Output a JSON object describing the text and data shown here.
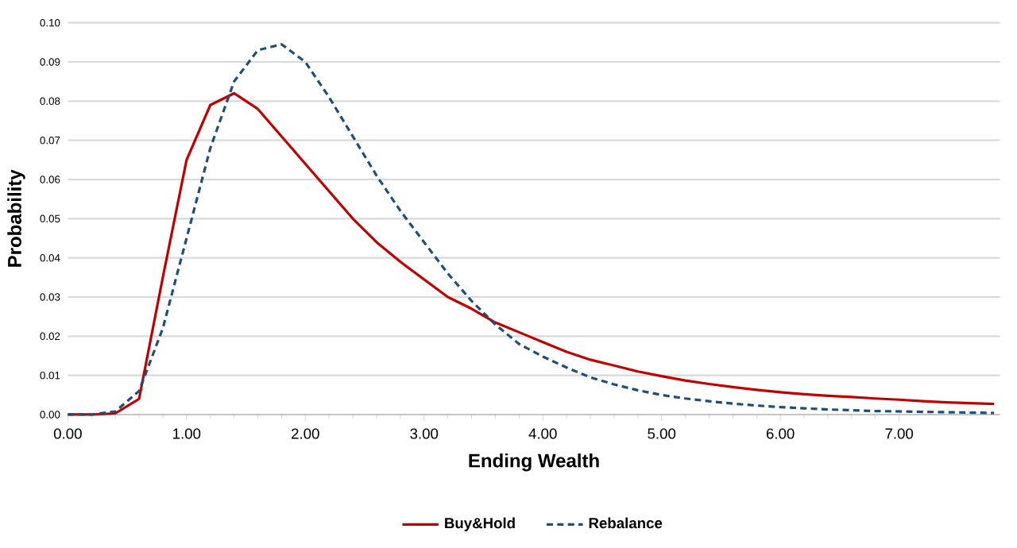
{
  "chart_data": {
    "type": "line",
    "xlabel": "Ending Wealth",
    "ylabel": "Probability",
    "x": [
      0,
      0.2,
      0.4,
      0.6,
      0.8,
      1.0,
      1.2,
      1.4,
      1.6,
      1.8,
      2.0,
      2.2,
      2.4,
      2.6,
      2.8,
      3.0,
      3.2,
      3.4,
      3.6,
      3.8,
      4.0,
      4.2,
      4.4,
      4.6,
      4.8,
      5.0,
      5.2,
      5.4,
      5.6,
      5.8,
      6.0,
      6.2,
      6.4,
      6.6,
      6.8,
      7.0,
      7.2,
      7.4,
      7.6,
      7.8
    ],
    "series": [
      {
        "name": "Buy&Hold",
        "color": "#c00000",
        "line_style": "solid",
        "values": [
          0,
          0,
          0.0003,
          0.004,
          0.035,
          0.065,
          0.079,
          0.082,
          0.078,
          0.071,
          0.064,
          0.057,
          0.05,
          0.044,
          0.039,
          0.0345,
          0.03,
          0.027,
          0.0235,
          0.021,
          0.0185,
          0.016,
          0.014,
          0.0125,
          0.011,
          0.0098,
          0.0087,
          0.0078,
          0.007,
          0.0063,
          0.0057,
          0.0052,
          0.0048,
          0.0045,
          0.0041,
          0.0038,
          0.0034,
          0.0031,
          0.0029,
          0.0027
        ]
      },
      {
        "name": "Rebalance",
        "color": "#1f4e79",
        "line_style": "dashed",
        "values": [
          0,
          0,
          0.0008,
          0.006,
          0.022,
          0.045,
          0.068,
          0.085,
          0.093,
          0.0945,
          0.09,
          0.081,
          0.071,
          0.061,
          0.052,
          0.044,
          0.036,
          0.029,
          0.023,
          0.018,
          0.0148,
          0.012,
          0.0095,
          0.0077,
          0.0062,
          0.005,
          0.0041,
          0.0034,
          0.0028,
          0.0023,
          0.0019,
          0.0016,
          0.0013,
          0.0011,
          0.0009,
          0.0008,
          0.0007,
          0.0006,
          0.0005,
          0.0004
        ]
      }
    ],
    "xlim": [
      0,
      7.85
    ],
    "ylim": [
      0,
      0.1
    ],
    "xticks": [
      {
        "value": 0,
        "label": "0.00"
      },
      {
        "value": 1,
        "label": "1.00"
      },
      {
        "value": 2,
        "label": "2.00"
      },
      {
        "value": 3,
        "label": "3.00"
      },
      {
        "value": 4,
        "label": "4.00"
      },
      {
        "value": 5,
        "label": "5.00"
      },
      {
        "value": 6,
        "label": "6.00"
      },
      {
        "value": 7,
        "label": "7.00"
      }
    ],
    "yticks": [
      {
        "value": 0,
        "label": "0.00"
      },
      {
        "value": 0.01,
        "label": "0.01"
      },
      {
        "value": 0.02,
        "label": "0.02"
      },
      {
        "value": 0.03,
        "label": "0.03"
      },
      {
        "value": 0.04,
        "label": "0.04"
      },
      {
        "value": 0.05,
        "label": "0.05"
      },
      {
        "value": 0.06,
        "label": "0.06"
      },
      {
        "value": 0.07,
        "label": "0.07"
      },
      {
        "value": 0.08,
        "label": "0.08"
      },
      {
        "value": 0.09,
        "label": "0.09"
      },
      {
        "value": 0.1,
        "label": "0.10"
      }
    ],
    "grid": "y",
    "legend": "bottom",
    "marker": "none"
  }
}
